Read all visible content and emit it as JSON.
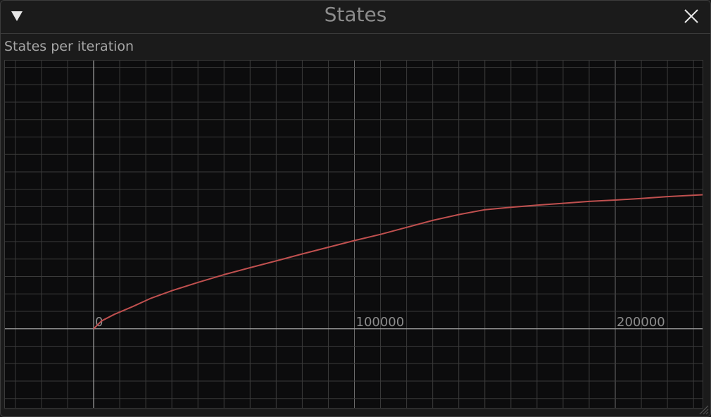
{
  "window": {
    "title": "States",
    "collapse_icon": "triangle-down-icon",
    "close_icon": "close-icon"
  },
  "plot": {
    "label": "States per iteration"
  },
  "colors": {
    "background": "#1b1b1b",
    "plot_background": "#0c0c0d",
    "grid": "#3a3a3a",
    "axis": "#a0a0a0",
    "line": "#c0504f",
    "text": "#8c8c8c"
  },
  "chart_data": {
    "type": "line",
    "title": "",
    "xlabel": "",
    "ylabel": "",
    "xlim": [
      -34000,
      234000
    ],
    "ylim": [
      -30,
      100
    ],
    "x_ticks": [
      {
        "value": 0,
        "label": "0"
      },
      {
        "value": 100000,
        "label": "100000"
      },
      {
        "value": 200000,
        "label": "200000"
      }
    ],
    "x_minor_step": 10000,
    "y_minor_step": 6.5,
    "grid": true,
    "series": [
      {
        "name": "",
        "x": [
          0,
          3000,
          8000,
          15000,
          22000,
          30000,
          40000,
          50000,
          60000,
          70000,
          80000,
          90000,
          100000,
          110000,
          120000,
          130000,
          140000,
          150000,
          160000,
          170000,
          180000,
          190000,
          200000,
          210000,
          220000,
          234000
        ],
        "y": [
          0,
          2.9,
          5.4,
          8.3,
          11.4,
          14.2,
          17.3,
          20.2,
          22.8,
          25.3,
          27.9,
          30.4,
          32.9,
          35.2,
          37.8,
          40.4,
          42.6,
          44.4,
          45.3,
          46.1,
          46.8,
          47.5,
          48.0,
          48.6,
          49.3,
          50.0
        ]
      }
    ]
  }
}
